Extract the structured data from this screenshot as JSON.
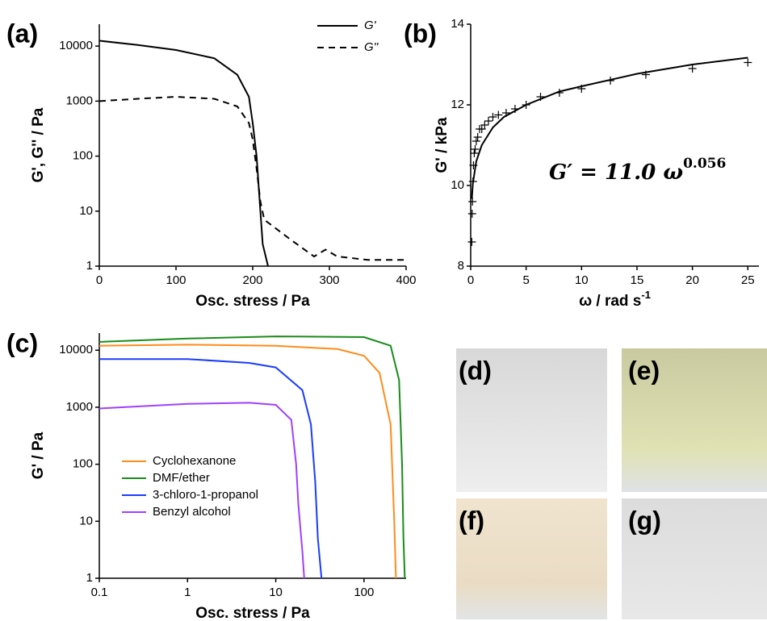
{
  "chart_data": [
    {
      "type": "line",
      "panel_label": "(a)",
      "xlabel": "Osc. stress / Pa",
      "ylabel": "G', G'' / Pa",
      "yscale": "log",
      "xlim": [
        0,
        400
      ],
      "ylim": [
        1,
        25000
      ],
      "xticks": [
        0,
        100,
        200,
        300,
        400
      ],
      "yticks": [
        1,
        10,
        100,
        1000,
        10000
      ],
      "legend": "upper right",
      "series": [
        {
          "name": "G'",
          "color": "#000000",
          "line_style": "solid",
          "x": [
            0,
            50,
            100,
            150,
            180,
            195,
            200,
            205,
            210,
            213,
            220
          ],
          "values": [
            12500,
            10500,
            8500,
            6000,
            3000,
            1200,
            400,
            100,
            10,
            2.5,
            1
          ]
        },
        {
          "name": "G''",
          "color": "#000000",
          "line_style": "dashed",
          "x": [
            0,
            50,
            100,
            150,
            180,
            195,
            200,
            205,
            210,
            215,
            250,
            280,
            295,
            310,
            350,
            400
          ],
          "values": [
            1000,
            1100,
            1200,
            1100,
            800,
            400,
            200,
            60,
            15,
            7,
            3,
            1.5,
            2,
            1.5,
            1.3,
            1.3
          ]
        }
      ]
    },
    {
      "type": "line",
      "panel_label": "(b)",
      "xlabel": "ω / rad s",
      "xlabel_sup": "-1",
      "ylabel": "G' / kPa",
      "xlim": [
        0,
        26
      ],
      "ylim": [
        8,
        14
      ],
      "xticks": [
        0,
        5,
        10,
        15,
        20,
        25
      ],
      "yticks": [
        8,
        10,
        12,
        14
      ],
      "annotation": {
        "text": "G′ = 11.0 ω",
        "superscript": "0.056"
      },
      "series": [
        {
          "color": "#000000",
          "line_style": "solid",
          "x": [
            0.1,
            0.2,
            0.5,
            1,
            2,
            3,
            5,
            8,
            10,
            15,
            20,
            25
          ],
          "values": [
            9.67,
            10.05,
            10.6,
            11.0,
            11.44,
            11.7,
            12.0,
            12.33,
            12.46,
            12.77,
            13.0,
            13.17
          ]
        },
        {
          "color": "#000000",
          "line_style": "markers",
          "x": [
            0.1,
            0.13,
            0.16,
            0.2,
            0.25,
            0.32,
            0.4,
            0.5,
            0.63,
            0.8,
            1.0,
            1.26,
            1.6,
            2.0,
            2.5,
            3.2,
            4,
            5,
            6.3,
            8,
            10,
            12.6,
            15.8,
            20,
            25
          ],
          "values": [
            8.6,
            9.3,
            9.6,
            10.1,
            10.5,
            10.8,
            10.9,
            11.1,
            11.2,
            11.4,
            11.4,
            11.5,
            11.6,
            11.7,
            11.75,
            11.8,
            11.9,
            12.0,
            12.2,
            12.3,
            12.4,
            12.6,
            12.75,
            12.9,
            13.05
          ]
        }
      ]
    },
    {
      "type": "line",
      "panel_label": "(c)",
      "xlabel": "Osc. stress / Pa",
      "ylabel": "G' / Pa",
      "xscale": "log",
      "yscale": "log",
      "xlim": [
        0.1,
        300
      ],
      "ylim": [
        1,
        20000
      ],
      "xticks": [
        0.1,
        1,
        10,
        100
      ],
      "yticks": [
        1,
        10,
        100,
        1000,
        10000
      ],
      "legend": "lower left",
      "series": [
        {
          "name": "Cyclohexanone",
          "color": "#ff8c1a",
          "line_style": "solid",
          "x": [
            0.1,
            1,
            10,
            50,
            100,
            150,
            200,
            220,
            230
          ],
          "values": [
            12000,
            12500,
            12000,
            10500,
            8000,
            4000,
            500,
            10,
            1
          ]
        },
        {
          "name": "DMF/ether",
          "color": "#1a8c1a",
          "line_style": "solid",
          "x": [
            0.1,
            1,
            10,
            100,
            200,
            250,
            270,
            280,
            290
          ],
          "values": [
            14000,
            16000,
            17500,
            17000,
            12000,
            3000,
            100,
            5,
            1
          ]
        },
        {
          "name": "3-chloro-1-propanol",
          "color": "#1a3cff",
          "line_style": "solid",
          "x": [
            0.1,
            1,
            5,
            10,
            20,
            25,
            28,
            30,
            33
          ],
          "values": [
            7000,
            7000,
            6000,
            5000,
            2000,
            500,
            50,
            5,
            1
          ]
        },
        {
          "name": "Benzyl alcohol",
          "color": "#a040ff",
          "line_style": "solid",
          "x": [
            0.1,
            1,
            5,
            10,
            15,
            17,
            18,
            20,
            21
          ],
          "values": [
            950,
            1150,
            1200,
            1100,
            600,
            100,
            20,
            3,
            1
          ]
        }
      ]
    }
  ],
  "photos": [
    {
      "label": "(d)"
    },
    {
      "label": "(e)"
    },
    {
      "label": "(f)"
    },
    {
      "label": "(g)"
    }
  ]
}
